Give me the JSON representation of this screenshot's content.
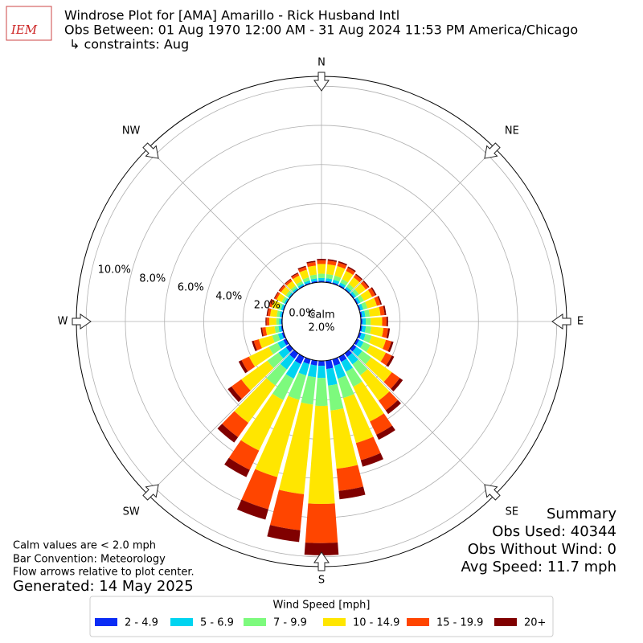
{
  "chart_data": {
    "type": "windrose",
    "logo_text": "IEM",
    "title": "Windrose Plot for [AMA] Amarillo - Rick Husband Intl",
    "subtitle": "Obs Between: 01 Aug 1970 12:00 AM - 31 Aug 2024 11:53 PM America/Chicago",
    "constraints": "↳ constraints: Aug",
    "directions": [
      0,
      10,
      20,
      30,
      40,
      50,
      60,
      70,
      80,
      90,
      100,
      110,
      120,
      130,
      140,
      150,
      160,
      170,
      180,
      190,
      200,
      210,
      220,
      230,
      240,
      250,
      260,
      270,
      280,
      290,
      300,
      310,
      320,
      330,
      340,
      350
    ],
    "compass": [
      {
        "label": "N",
        "value": 0
      },
      {
        "label": "NE",
        "value": 45
      },
      {
        "label": "E",
        "value": 90
      },
      {
        "label": "SE",
        "value": 135
      },
      {
        "label": "S",
        "value": 180
      },
      {
        "label": "SW",
        "value": 225
      },
      {
        "label": "W",
        "value": 270
      },
      {
        "label": "NW",
        "value": 315
      }
    ],
    "rlim": [
      0,
      10.5
    ],
    "rticks": [
      {
        "value": 0,
        "label": "0.0%"
      },
      {
        "value": 2,
        "label": "2.0%"
      },
      {
        "value": 4,
        "label": "4.0%"
      },
      {
        "value": 6,
        "label": "6.0%"
      },
      {
        "value": 8,
        "label": "8.0%"
      },
      {
        "value": 10,
        "label": "10.0%"
      }
    ],
    "calm": {
      "label": "Calm",
      "value": 2.0,
      "value_label": "2.0%"
    },
    "legend_title": "Wind Speed [mph]",
    "series": [
      {
        "name": "2 - 4.9",
        "color": "#0a2cf5",
        "values": [
          0.07,
          0.07,
          0.07,
          0.07,
          0.06,
          0.06,
          0.07,
          0.07,
          0.08,
          0.08,
          0.09,
          0.11,
          0.13,
          0.19,
          0.23,
          0.28,
          0.34,
          0.43,
          0.25,
          0.25,
          0.25,
          0.41,
          0.34,
          0.23,
          0.16,
          0.1,
          0.07,
          0.05,
          0.05,
          0.05,
          0.04,
          0.04,
          0.04,
          0.05,
          0.06,
          0.07
        ]
      },
      {
        "name": "5 - 6.9",
        "color": "#00d4f0",
        "values": [
          0.14,
          0.14,
          0.14,
          0.13,
          0.12,
          0.12,
          0.13,
          0.14,
          0.16,
          0.17,
          0.18,
          0.22,
          0.25,
          0.37,
          0.46,
          0.56,
          0.68,
          0.85,
          0.62,
          0.6,
          0.6,
          0.82,
          0.67,
          0.47,
          0.32,
          0.2,
          0.13,
          0.1,
          0.1,
          0.1,
          0.08,
          0.08,
          0.08,
          0.09,
          0.11,
          0.13
        ]
      },
      {
        "name": "7 - 9.9",
        "color": "#7dfa7d",
        "values": [
          0.22,
          0.22,
          0.22,
          0.2,
          0.18,
          0.18,
          0.2,
          0.22,
          0.23,
          0.25,
          0.27,
          0.32,
          0.38,
          0.56,
          0.68,
          0.85,
          1.03,
          1.28,
          1.43,
          1.4,
          1.3,
          1.22,
          1.01,
          0.7,
          0.49,
          0.31,
          0.2,
          0.15,
          0.14,
          0.14,
          0.13,
          0.13,
          0.13,
          0.14,
          0.17,
          0.2
        ]
      },
      {
        "name": "10 - 14.9",
        "color": "#ffe600",
        "values": [
          0.5,
          0.5,
          0.5,
          0.46,
          0.42,
          0.42,
          0.46,
          0.5,
          0.55,
          0.59,
          0.63,
          0.76,
          0.88,
          1.3,
          1.6,
          1.97,
          2.39,
          2.98,
          5.0,
          4.6,
          4.1,
          2.86,
          2.35,
          1.64,
          1.13,
          0.71,
          0.46,
          0.36,
          0.34,
          0.34,
          0.29,
          0.29,
          0.29,
          0.32,
          0.4,
          0.46
        ]
      },
      {
        "name": "15 - 19.9",
        "color": "#ff4500",
        "values": [
          0.19,
          0.19,
          0.19,
          0.18,
          0.16,
          0.16,
          0.18,
          0.19,
          0.21,
          0.22,
          0.24,
          0.29,
          0.34,
          0.5,
          0.61,
          0.75,
          0.91,
          1.14,
          2.0,
          1.85,
          1.7,
          1.09,
          0.9,
          0.62,
          0.43,
          0.27,
          0.18,
          0.14,
          0.13,
          0.13,
          0.11,
          0.11,
          0.11,
          0.12,
          0.15,
          0.18
        ]
      },
      {
        "name": "20+",
        "color": "#800000",
        "values": [
          0.07,
          0.07,
          0.07,
          0.07,
          0.06,
          0.06,
          0.07,
          0.07,
          0.08,
          0.08,
          0.09,
          0.11,
          0.13,
          0.19,
          0.23,
          0.28,
          0.34,
          0.43,
          0.62,
          0.6,
          0.55,
          0.41,
          0.34,
          0.23,
          0.16,
          0.1,
          0.07,
          0.05,
          0.05,
          0.05,
          0.04,
          0.04,
          0.04,
          0.05,
          0.06,
          0.07
        ]
      }
    ],
    "notes": [
      "Calm values are < 2.0 mph",
      "Bar Convention: Meteorology",
      "Flow arrows relative to plot center."
    ],
    "generated": "Generated: 14 May 2025",
    "summary": [
      "Summary",
      "Obs Used: 40344",
      "Obs Without Wind: 0",
      "Avg Speed: 11.7 mph"
    ]
  }
}
